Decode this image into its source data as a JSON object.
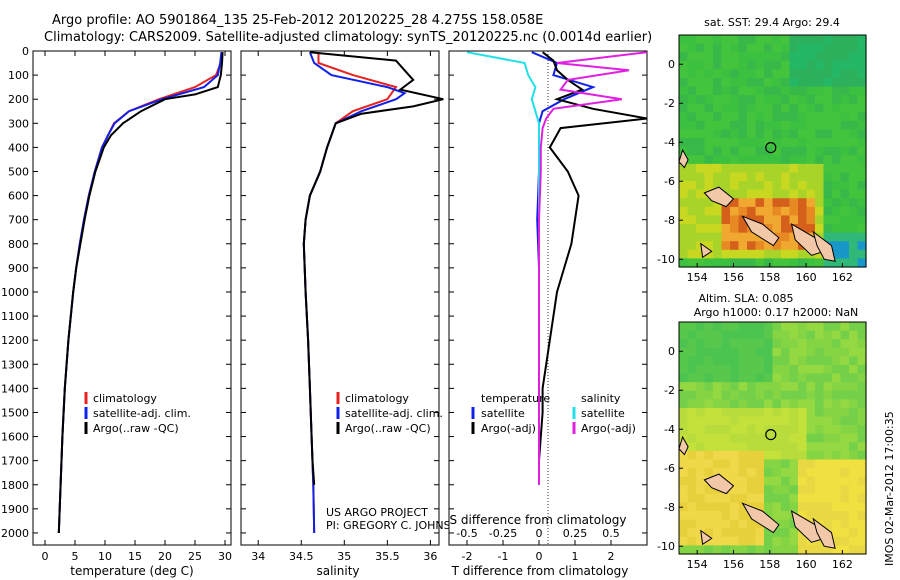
{
  "header": {
    "line1": "Argo profile: AO 5901864_135 25-Feb-2012 20120225_28 4.275S 158.058E",
    "line2": "Climatology: CARS2009. Satellite-adjusted climatology: synTS_20120225.nc (0.0014d earlier)"
  },
  "colors": {
    "climatology": "#e8221f",
    "satellite": "#1020e8",
    "argo": "#000000",
    "salinity_sat": "#20e0e8",
    "salinity_argo": "#e020e0"
  },
  "chart_data": [
    {
      "type": "line",
      "panel": "temperature",
      "xlabel": "temperature (deg C)",
      "ylabel": "",
      "xlim": [
        -2,
        31
      ],
      "ylim": [
        2050,
        0
      ],
      "xticks": [
        "0",
        "5",
        "10",
        "15",
        "20",
        "25",
        "30"
      ],
      "yticks": [
        "0",
        "100",
        "200",
        "300",
        "400",
        "500",
        "600",
        "700",
        "800",
        "900",
        "1000",
        "1100",
        "1200",
        "1300",
        "1400",
        "1500",
        "1600",
        "1700",
        "1800",
        "1900",
        "2000"
      ],
      "legend": [
        "climatology",
        "satellite-adj. clim.",
        "Argo(..raw -QC)"
      ],
      "series": [
        {
          "name": "climatology",
          "y": [
            5,
            50,
            100,
            150,
            200,
            250,
            300,
            350,
            400,
            500,
            600,
            700,
            800,
            900,
            1000,
            1200,
            1400,
            1600,
            1800,
            2000
          ],
          "values": [
            29.5,
            29.3,
            28.5,
            25,
            19,
            14,
            11.5,
            10.5,
            9.5,
            8.3,
            7.3,
            6.5,
            5.8,
            5.2,
            4.7,
            3.9,
            3.3,
            2.9,
            2.6,
            2.3
          ]
        },
        {
          "name": "satellite-adj. clim.",
          "y": [
            5,
            50,
            100,
            150,
            200,
            250,
            300,
            350,
            400,
            500,
            600,
            700,
            800,
            900,
            1000,
            1200,
            1400,
            1600,
            1800,
            2000
          ],
          "values": [
            29.4,
            29.2,
            28.8,
            26.5,
            19.5,
            14,
            11.6,
            10.5,
            9.5,
            8.3,
            7.3,
            6.5,
            5.8,
            5.2,
            4.7,
            3.9,
            3.3,
            2.9,
            2.6,
            2.3
          ]
        },
        {
          "name": "Argo(..raw -QC)",
          "y": [
            5,
            50,
            100,
            150,
            180,
            200,
            250,
            300,
            350,
            400,
            500,
            600,
            700,
            800,
            900,
            1000,
            1200,
            1400,
            1600,
            1800,
            2000
          ],
          "values": [
            29.6,
            29.5,
            29.3,
            28.8,
            25,
            20,
            16,
            13,
            11,
            9.8,
            8.4,
            7.4,
            6.6,
            5.9,
            5.2,
            4.7,
            3.9,
            3.3,
            2.9,
            2.6,
            2.3
          ]
        }
      ]
    },
    {
      "type": "line",
      "panel": "salinity",
      "xlabel": "salinity",
      "xlim": [
        33.8,
        36.1
      ],
      "ylim": [
        2050,
        0
      ],
      "xticks": [
        "34",
        "34.5",
        "35",
        "35.5",
        "36"
      ],
      "legend": [
        "climatology",
        "satellite-adj. clim.",
        "Argo(..raw -QC)"
      ],
      "annotation": [
        "US ARGO PROJECT",
        "PI: GREGORY C. JOHNSON"
      ],
      "series": [
        {
          "name": "climatology",
          "y": [
            5,
            50,
            100,
            150,
            200,
            250,
            300,
            400,
            500,
            600,
            700,
            800,
            900,
            1000,
            1200,
            1400,
            1600,
            1800,
            2000
          ],
          "values": [
            34.7,
            34.7,
            35.1,
            35.6,
            35.5,
            35.1,
            34.9,
            34.8,
            34.72,
            34.6,
            34.55,
            34.53,
            34.54,
            34.55,
            34.58,
            34.6,
            34.62,
            34.64,
            34.65
          ]
        },
        {
          "name": "satellite-adj. clim.",
          "y": [
            5,
            50,
            100,
            150,
            175,
            200,
            250,
            300,
            400,
            500,
            600,
            700,
            800,
            900,
            1000,
            1200,
            1400,
            1600,
            1800,
            2000
          ],
          "values": [
            34.6,
            34.65,
            34.85,
            35.5,
            35.7,
            35.6,
            35.2,
            34.9,
            34.8,
            34.72,
            34.6,
            34.55,
            34.53,
            34.54,
            34.55,
            34.58,
            34.6,
            34.62,
            34.64,
            34.65
          ]
        },
        {
          "name": "Argo(..raw -QC)",
          "y": [
            5,
            40,
            80,
            120,
            160,
            200,
            230,
            260,
            300,
            400,
            500,
            600,
            700,
            800,
            900,
            1000,
            1200,
            1400,
            1600,
            1700,
            1800
          ],
          "values": [
            34.6,
            35.6,
            35.7,
            35.8,
            35.65,
            36.15,
            35.8,
            35.2,
            34.9,
            34.8,
            34.72,
            34.6,
            34.55,
            34.53,
            34.54,
            34.55,
            34.58,
            34.6,
            34.62,
            34.63,
            34.65
          ]
        }
      ]
    },
    {
      "type": "line",
      "panel": "difference",
      "xlabel": "T difference from climatology",
      "xlabel_top": "S difference from climatology",
      "xlim": [
        -2.5,
        3.0
      ],
      "ylim": [
        2050,
        0
      ],
      "xticks": [
        "-2",
        "-1",
        "0",
        "1",
        "2"
      ],
      "xticks_top": [
        "-0.5",
        "-0.25",
        "0",
        "0.25",
        "0.5"
      ],
      "legend_titles": [
        "temperature",
        "salinity"
      ],
      "legend": [
        "satellite",
        "Argo(-adj)",
        "satellite",
        "Argo(-adj)"
      ],
      "series": [
        {
          "name": "temperature satellite",
          "y": [
            5,
            50,
            100,
            150,
            200,
            250,
            300,
            350,
            400,
            500,
            700,
            900,
            1100,
            1300,
            1500,
            1700,
            1800
          ],
          "values": [
            -0.2,
            0.5,
            0.4,
            1.5,
            0.7,
            0.1,
            0.0,
            0.0,
            0.0,
            0.0,
            -0.05,
            0.0,
            0.0,
            0.0,
            0.0,
            0.0,
            0.0
          ]
        },
        {
          "name": "temperature Argo(-adj)",
          "y": [
            5,
            40,
            80,
            120,
            160,
            200,
            240,
            280,
            320,
            400,
            500,
            600,
            700,
            800,
            900,
            1000,
            1100,
            1200,
            1300,
            1400,
            1500,
            1600,
            1700,
            1800
          ],
          "values": [
            0.1,
            0.4,
            0.5,
            0.8,
            1.2,
            0.5,
            1.5,
            3.0,
            0.6,
            0.3,
            0.8,
            1.1,
            1.0,
            0.9,
            0.7,
            0.5,
            0.4,
            0.3,
            0.2,
            0.1,
            0.1,
            0.05,
            0.0,
            0.0
          ]
        },
        {
          "name": "salinity satellite",
          "y": [
            5,
            50,
            100,
            150,
            200,
            250,
            300,
            400,
            500,
            700,
            900,
            1100,
            1300,
            1500,
            1700,
            1800
          ],
          "values": [
            -2.0,
            -0.4,
            -0.3,
            -0.1,
            -0.2,
            -0.1,
            0.0,
            0.0,
            0.0,
            0.0,
            0.0,
            0.0,
            0.0,
            0.0,
            0.0,
            0.0
          ]
        },
        {
          "name": "salinity Argo(-adj)",
          "y": [
            5,
            50,
            80,
            120,
            160,
            200,
            240,
            280,
            320,
            400,
            500,
            700,
            900,
            1100,
            1300,
            1500,
            1700,
            1800
          ],
          "values": [
            3.0,
            0.5,
            2.5,
            0.8,
            0.6,
            2.3,
            0.4,
            0.2,
            0.1,
            0.05,
            0.05,
            0.0,
            0.0,
            0.0,
            0.0,
            0.0,
            0.0,
            0.0
          ]
        }
      ]
    },
    {
      "type": "heatmap",
      "panel": "sst-map",
      "title": "sat. SST: 29.4 Argo: 29.4",
      "xlim": [
        153,
        163.3
      ],
      "ylim": [
        -10.4,
        1.5
      ],
      "xticks": [
        "154",
        "156",
        "158",
        "160",
        "162"
      ],
      "yticks": [
        "0",
        "-2",
        "-4",
        "-6",
        "-8",
        "-10"
      ],
      "marker": {
        "lon": 158.058,
        "lat": -4.275
      }
    },
    {
      "type": "heatmap",
      "panel": "sla-map",
      "title_line1": "Altim. SLA: 0.085",
      "title_line2": "Argo h1000: 0.17 h2000: NaN",
      "xlim": [
        153,
        163.3
      ],
      "ylim": [
        -10.4,
        1.5
      ],
      "xticks": [
        "154",
        "156",
        "158",
        "160",
        "162"
      ],
      "yticks": [
        "0",
        "-2",
        "-4",
        "-6",
        "-8",
        "-10"
      ],
      "marker": {
        "lon": 158.058,
        "lat": -4.275
      }
    }
  ],
  "footer": {
    "side_label": "IMOS 02-Mar-2012 17:00:35"
  }
}
